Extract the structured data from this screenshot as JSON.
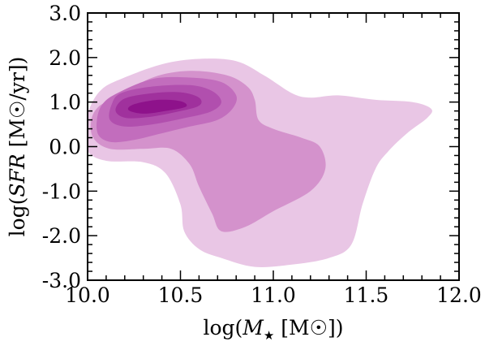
{
  "chart_data": {
    "type": "contour",
    "title": "",
    "xlabel": "log(M★ [M☉])",
    "ylabel": "log(SFR [M☉/yr])",
    "xlabel_parts": {
      "pre": "log(",
      "sym": "M",
      "sub": "★",
      "post": " [M☉])"
    },
    "ylabel_parts": {
      "pre": "log(",
      "sym": "SFR",
      "post": " [M☉/yr])"
    },
    "xlim": [
      10.0,
      12.0
    ],
    "ylim": [
      -3.0,
      3.0
    ],
    "xticks": [
      10.0,
      10.5,
      11.0,
      11.5,
      12.0
    ],
    "xtick_labels": [
      "10.0",
      "10.5",
      "11.0",
      "11.5",
      "12.0"
    ],
    "yticks": [
      -3.0,
      -2.0,
      -1.0,
      0.0,
      1.0,
      2.0,
      3.0
    ],
    "ytick_labels": [
      "-3.0",
      "-2.0",
      "-1.0",
      "0.0",
      "1.0",
      "2.0",
      "3.0"
    ],
    "minor_tick_step_x": 0.1,
    "minor_tick_step_y": 0.2,
    "grid": false,
    "levels": [
      {
        "color": "#e9c6e5",
        "points": [
          [
            10.18,
            1.52
          ],
          [
            10.4,
            1.85
          ],
          [
            10.6,
            1.97
          ],
          [
            10.8,
            1.92
          ],
          [
            10.95,
            1.6
          ],
          [
            11.1,
            1.2
          ],
          [
            11.2,
            1.1
          ],
          [
            11.35,
            1.15
          ],
          [
            11.55,
            1.05
          ],
          [
            11.75,
            1.0
          ],
          [
            11.85,
            0.85
          ],
          [
            11.83,
            0.65
          ],
          [
            11.72,
            0.3
          ],
          [
            11.62,
            -0.1
          ],
          [
            11.55,
            -0.5
          ],
          [
            11.48,
            -1.3
          ],
          [
            11.42,
            -2.2
          ],
          [
            11.3,
            -2.5
          ],
          [
            11.1,
            -2.65
          ],
          [
            10.9,
            -2.7
          ],
          [
            10.72,
            -2.5
          ],
          [
            10.6,
            -2.3
          ],
          [
            10.52,
            -1.9
          ],
          [
            10.5,
            -1.3
          ],
          [
            10.42,
            -0.6
          ],
          [
            10.3,
            -0.35
          ],
          [
            10.1,
            -0.32
          ],
          [
            10.0,
            -0.1
          ],
          [
            9.98,
            0.4
          ],
          [
            10.02,
            0.95
          ],
          [
            10.08,
            1.3
          ]
        ]
      },
      {
        "color": "#d492cc",
        "points": [
          [
            10.15,
            1.1
          ],
          [
            10.35,
            1.55
          ],
          [
            10.55,
            1.7
          ],
          [
            10.75,
            1.6
          ],
          [
            10.86,
            1.35
          ],
          [
            10.9,
            1.05
          ],
          [
            10.92,
            0.6
          ],
          [
            11.0,
            0.4
          ],
          [
            11.15,
            0.2
          ],
          [
            11.25,
            0.0
          ],
          [
            11.28,
            -0.5
          ],
          [
            11.2,
            -1.0
          ],
          [
            11.0,
            -1.45
          ],
          [
            10.85,
            -1.8
          ],
          [
            10.72,
            -1.9
          ],
          [
            10.67,
            -1.5
          ],
          [
            10.6,
            -0.9
          ],
          [
            10.55,
            -0.4
          ],
          [
            10.45,
            -0.05
          ],
          [
            10.3,
            -0.05
          ],
          [
            10.12,
            -0.05
          ],
          [
            10.03,
            0.2
          ],
          [
            10.02,
            0.6
          ],
          [
            10.06,
            0.9
          ]
        ]
      },
      {
        "color": "#c26dbd",
        "points": [
          [
            10.16,
            1.2
          ],
          [
            10.35,
            1.52
          ],
          [
            10.55,
            1.55
          ],
          [
            10.72,
            1.45
          ],
          [
            10.8,
            1.15
          ],
          [
            10.78,
            0.85
          ],
          [
            10.7,
            0.6
          ],
          [
            10.55,
            0.45
          ],
          [
            10.4,
            0.3
          ],
          [
            10.25,
            0.15
          ],
          [
            10.13,
            0.1
          ],
          [
            10.06,
            0.25
          ],
          [
            10.05,
            0.6
          ],
          [
            10.08,
            0.95
          ]
        ]
      },
      {
        "color": "#b14fae",
        "points": [
          [
            10.18,
            1.2
          ],
          [
            10.35,
            1.35
          ],
          [
            10.55,
            1.38
          ],
          [
            10.67,
            1.25
          ],
          [
            10.72,
            1.0
          ],
          [
            10.66,
            0.78
          ],
          [
            10.5,
            0.62
          ],
          [
            10.35,
            0.5
          ],
          [
            10.2,
            0.45
          ],
          [
            10.12,
            0.6
          ],
          [
            10.13,
            0.95
          ]
        ]
      },
      {
        "color": "#a0319d",
        "points": [
          [
            10.2,
            1.08
          ],
          [
            10.35,
            1.2
          ],
          [
            10.5,
            1.22
          ],
          [
            10.6,
            1.1
          ],
          [
            10.6,
            0.92
          ],
          [
            10.48,
            0.78
          ],
          [
            10.32,
            0.66
          ],
          [
            10.2,
            0.65
          ],
          [
            10.15,
            0.82
          ]
        ]
      },
      {
        "color": "#8e128b",
        "points": [
          [
            10.25,
            0.95
          ],
          [
            10.38,
            1.05
          ],
          [
            10.5,
            1.02
          ],
          [
            10.53,
            0.9
          ],
          [
            10.42,
            0.8
          ],
          [
            10.3,
            0.74
          ],
          [
            10.22,
            0.82
          ]
        ]
      }
    ]
  }
}
